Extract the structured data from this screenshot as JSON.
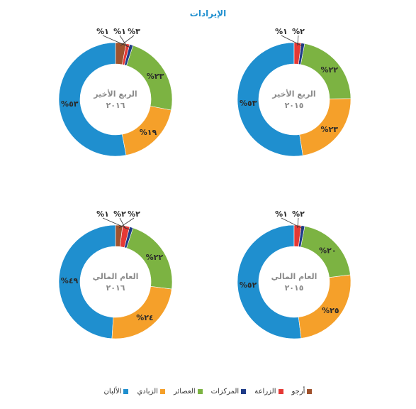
{
  "chart_data": {
    "type": "pie",
    "title": "الإيرادات",
    "categories": [
      "الألبان",
      "الزبادي",
      "العصائر",
      "المركزات",
      "الزراعة",
      "أرجو"
    ],
    "colors": [
      "#1f8fcf",
      "#f5a02a",
      "#7cb342",
      "#1f3c88",
      "#e53935",
      "#a0522d"
    ],
    "charts": [
      {
        "id": "q4-2016",
        "label": "الربع الأخير",
        "year": "٢٠١٦",
        "values": [
          53,
          19,
          23,
          1,
          1,
          3
        ],
        "labels": [
          "%٥٣",
          "%١٩",
          "%٢٣",
          "%١",
          "%١",
          "%٣"
        ]
      },
      {
        "id": "q4-2015",
        "label": "الربع الأخير",
        "year": "٢٠١٥",
        "values": [
          53,
          23,
          22,
          1,
          2,
          0
        ],
        "labels": [
          "%٥٣",
          "%٢٣",
          "%٢٢",
          "%١",
          "%٢",
          ""
        ]
      },
      {
        "id": "fy-2016",
        "label": "العام المالي",
        "year": "٢٠١٦",
        "values": [
          49,
          24,
          22,
          1,
          2,
          2
        ],
        "labels": [
          "%٤٩",
          "%٢٤",
          "%٢٢",
          "%١",
          "%٢",
          "%٢"
        ]
      },
      {
        "id": "fy-2015",
        "label": "العام المالي",
        "year": "٢٠١٥",
        "values": [
          52,
          25,
          20,
          1,
          2,
          0
        ],
        "labels": [
          "%٥٢",
          "%٢٥",
          "%٢٠",
          "%١",
          "%٢",
          ""
        ]
      }
    ]
  }
}
